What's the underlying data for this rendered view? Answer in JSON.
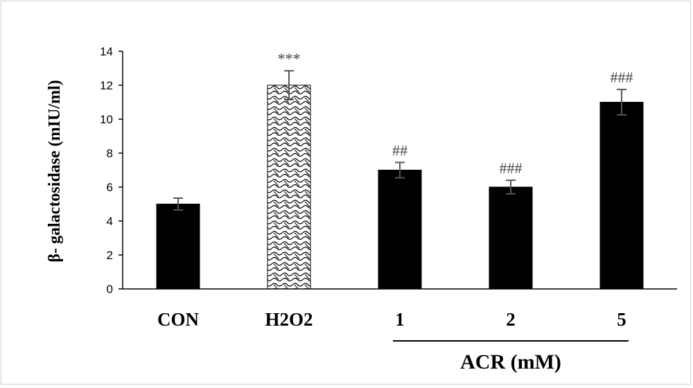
{
  "chart_data": {
    "type": "bar",
    "categories": [
      "CON",
      "H2O2",
      "1",
      "2",
      "5"
    ],
    "values": [
      5.0,
      12.0,
      7.0,
      6.0,
      11.0
    ],
    "errors": [
      0.35,
      0.85,
      0.45,
      0.4,
      0.75
    ],
    "annotations": [
      "",
      "***",
      "##",
      "###",
      "###"
    ],
    "bar_fills": [
      "solid",
      "pattern",
      "solid",
      "solid",
      "solid"
    ],
    "ylabel": "β- galactosidase  (mIU/ml)",
    "ylim": [
      0,
      14
    ],
    "yticks": [
      "0",
      "2",
      "4",
      "6",
      "8",
      "10",
      "12",
      "14"
    ],
    "group_label": "ACR (mM)",
    "group_categories": [
      "1",
      "2",
      "5"
    ],
    "grid": false,
    "colors": {
      "bar": "#000000",
      "axis": "#000000",
      "error": "#555555",
      "annotation": "#444444"
    }
  }
}
